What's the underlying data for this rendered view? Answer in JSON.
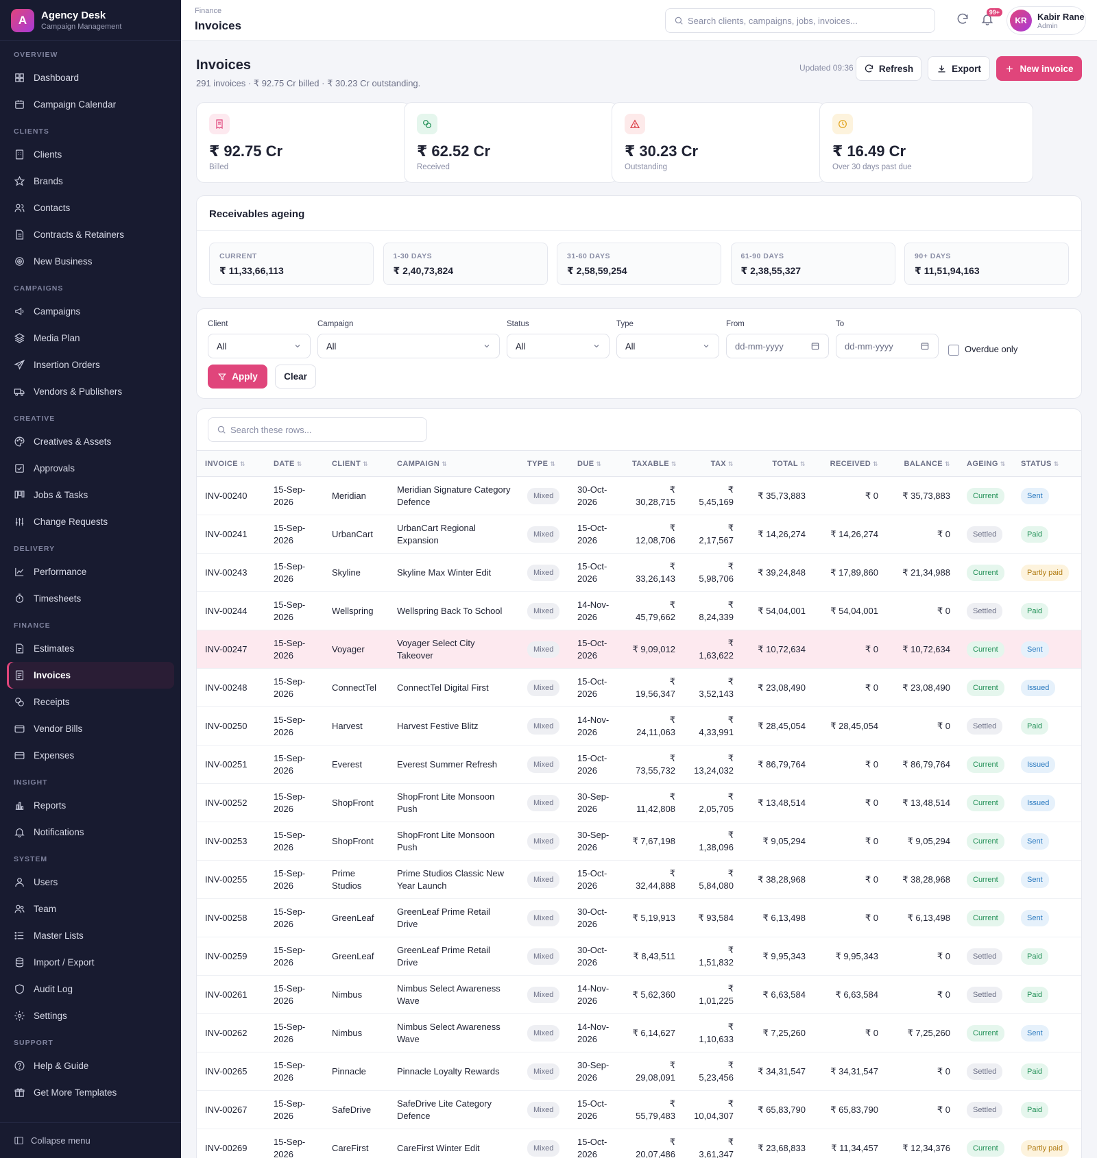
{
  "brand": {
    "name": "Agency Desk",
    "sub": "Campaign Management",
    "logo_letter": "A"
  },
  "sidebar": {
    "sections": [
      {
        "title": "OVERVIEW",
        "items": [
          {
            "label": "Dashboard",
            "icon": "dashboard-icon"
          },
          {
            "label": "Campaign Calendar",
            "icon": "calendar-icon"
          }
        ]
      },
      {
        "title": "CLIENTS",
        "items": [
          {
            "label": "Clients",
            "icon": "building-icon"
          },
          {
            "label": "Brands",
            "icon": "star-icon"
          },
          {
            "label": "Contacts",
            "icon": "contacts-icon"
          },
          {
            "label": "Contracts & Retainers",
            "icon": "contract-icon"
          },
          {
            "label": "New Business",
            "icon": "target-icon"
          }
        ]
      },
      {
        "title": "CAMPAIGNS",
        "items": [
          {
            "label": "Campaigns",
            "icon": "megaphone-icon"
          },
          {
            "label": "Media Plan",
            "icon": "layers-icon"
          },
          {
            "label": "Insertion Orders",
            "icon": "send-icon"
          },
          {
            "label": "Vendors & Publishers",
            "icon": "truck-icon"
          }
        ]
      },
      {
        "title": "CREATIVE",
        "items": [
          {
            "label": "Creatives & Assets",
            "icon": "palette-icon"
          },
          {
            "label": "Approvals",
            "icon": "check-square-icon"
          },
          {
            "label": "Jobs & Tasks",
            "icon": "kanban-icon"
          },
          {
            "label": "Change Requests",
            "icon": "sliders-icon"
          }
        ]
      },
      {
        "title": "DELIVERY",
        "items": [
          {
            "label": "Performance",
            "icon": "chart-line-icon"
          },
          {
            "label": "Timesheets",
            "icon": "stopwatch-icon"
          }
        ]
      },
      {
        "title": "FINANCE",
        "items": [
          {
            "label": "Estimates",
            "icon": "estimate-icon"
          },
          {
            "label": "Invoices",
            "icon": "invoice-icon",
            "active": true
          },
          {
            "label": "Receipts",
            "icon": "coins-icon"
          },
          {
            "label": "Vendor Bills",
            "icon": "wallet-icon"
          },
          {
            "label": "Expenses",
            "icon": "card-icon"
          }
        ]
      },
      {
        "title": "INSIGHT",
        "items": [
          {
            "label": "Reports",
            "icon": "bar-chart-icon"
          },
          {
            "label": "Notifications",
            "icon": "bell-icon"
          }
        ]
      },
      {
        "title": "SYSTEM",
        "items": [
          {
            "label": "Users",
            "icon": "user-icon"
          },
          {
            "label": "Team",
            "icon": "team-icon"
          },
          {
            "label": "Master Lists",
            "icon": "list-icon"
          },
          {
            "label": "Import / Export",
            "icon": "database-icon"
          },
          {
            "label": "Audit Log",
            "icon": "shield-icon"
          },
          {
            "label": "Settings",
            "icon": "gear-icon"
          }
        ]
      },
      {
        "title": "SUPPORT",
        "items": [
          {
            "label": "Help & Guide",
            "icon": "help-icon"
          },
          {
            "label": "Get More Templates",
            "icon": "gift-icon"
          }
        ]
      }
    ],
    "collapse_label": "Collapse menu"
  },
  "topbar": {
    "crumb": "Finance",
    "title": "Invoices",
    "search_placeholder": "Search clients, campaigns, jobs, invoices...",
    "notif_count": "99+",
    "user_initials": "KR",
    "user_name": "Kabir Rane",
    "user_role": "Admin"
  },
  "header": {
    "title": "Invoices",
    "subtitle": "291 invoices · ₹ 92.75 Cr billed · ₹ 30.23 Cr outstanding.",
    "updated": "Updated 09:36",
    "refresh_label": "Refresh",
    "export_label": "Export",
    "new_label": "New invoice"
  },
  "kpis": [
    {
      "value": "₹ 92.75 Cr",
      "label": "Billed",
      "icon": "receipt-icon",
      "color": "#e0457b",
      "bg": "#fde9ef"
    },
    {
      "value": "₹ 62.52 Cr",
      "label": "Received",
      "icon": "coins-icon",
      "color": "#1f8f55",
      "bg": "#e5f6ed"
    },
    {
      "value": "₹ 30.23 Cr",
      "label": "Outstanding",
      "icon": "warning-icon",
      "color": "#d9363e",
      "bg": "#fdeaea"
    },
    {
      "value": "₹ 16.49 Cr",
      "label": "Over 30 days past due",
      "icon": "clock-icon",
      "color": "#e0a21b",
      "bg": "#fdf3dd"
    }
  ],
  "ageing": {
    "title": "Receivables ageing",
    "buckets": [
      {
        "label": "CURRENT",
        "value": "₹ 11,33,66,113"
      },
      {
        "label": "1-30 DAYS",
        "value": "₹ 2,40,73,824"
      },
      {
        "label": "31-60 DAYS",
        "value": "₹ 2,58,59,254"
      },
      {
        "label": "61-90 DAYS",
        "value": "₹ 2,38,55,327"
      },
      {
        "label": "90+ DAYS",
        "value": "₹ 11,51,94,163"
      }
    ]
  },
  "filters": {
    "client_label": "Client",
    "client_value": "All",
    "campaign_label": "Campaign",
    "campaign_value": "All",
    "status_label": "Status",
    "status_value": "All",
    "type_label": "Type",
    "type_value": "All",
    "from_label": "From",
    "from_placeholder": "dd-mm-yyyy",
    "to_label": "To",
    "to_placeholder": "dd-mm-yyyy",
    "overdue_label": "Overdue only",
    "apply_label": "Apply",
    "clear_label": "Clear"
  },
  "table": {
    "search_placeholder": "Search these rows...",
    "columns": [
      "INVOICE",
      "DATE",
      "CLIENT",
      "CAMPAIGN",
      "TYPE",
      "DUE",
      "TAXABLE",
      "TAX",
      "TOTAL",
      "RECEIVED",
      "BALANCE",
      "AGEING",
      "STATUS"
    ],
    "rows": [
      {
        "invoice": "INV-00240",
        "date": "15-Sep-2026",
        "client": "Meridian",
        "campaign": "Meridian Signature Category Defence",
        "type": "Mixed",
        "due": "30-Oct-2026",
        "taxable": "₹ 30,28,715",
        "tax": "₹ 5,45,169",
        "total": "₹ 35,73,883",
        "received": "₹ 0",
        "balance": "₹ 35,73,883",
        "ageing": "Current",
        "status": "Sent"
      },
      {
        "invoice": "INV-00241",
        "date": "15-Sep-2026",
        "client": "UrbanCart",
        "campaign": "UrbanCart Regional Expansion",
        "type": "Mixed",
        "due": "15-Oct-2026",
        "taxable": "₹ 12,08,706",
        "tax": "₹ 2,17,567",
        "total": "₹ 14,26,274",
        "received": "₹ 14,26,274",
        "balance": "₹ 0",
        "ageing": "Settled",
        "status": "Paid"
      },
      {
        "invoice": "INV-00243",
        "date": "15-Sep-2026",
        "client": "Skyline",
        "campaign": "Skyline Max Winter Edit",
        "type": "Mixed",
        "due": "15-Oct-2026",
        "taxable": "₹ 33,26,143",
        "tax": "₹ 5,98,706",
        "total": "₹ 39,24,848",
        "received": "₹ 17,89,860",
        "balance": "₹ 21,34,988",
        "ageing": "Current",
        "status": "Partly paid"
      },
      {
        "invoice": "INV-00244",
        "date": "15-Sep-2026",
        "client": "Wellspring",
        "campaign": "Wellspring Back To School",
        "type": "Mixed",
        "due": "14-Nov-2026",
        "taxable": "₹ 45,79,662",
        "tax": "₹ 8,24,339",
        "total": "₹ 54,04,001",
        "received": "₹ 54,04,001",
        "balance": "₹ 0",
        "ageing": "Settled",
        "status": "Paid"
      },
      {
        "invoice": "INV-00247",
        "date": "15-Sep-2026",
        "client": "Voyager",
        "campaign": "Voyager Select City Takeover",
        "type": "Mixed",
        "due": "15-Oct-2026",
        "taxable": "₹ 9,09,012",
        "tax": "₹ 1,63,622",
        "total": "₹ 10,72,634",
        "received": "₹ 0",
        "balance": "₹ 10,72,634",
        "ageing": "Current",
        "status": "Sent",
        "highlight": true
      },
      {
        "invoice": "INV-00248",
        "date": "15-Sep-2026",
        "client": "ConnectTel",
        "campaign": "ConnectTel Digital First",
        "type": "Mixed",
        "due": "15-Oct-2026",
        "taxable": "₹ 19,56,347",
        "tax": "₹ 3,52,143",
        "total": "₹ 23,08,490",
        "received": "₹ 0",
        "balance": "₹ 23,08,490",
        "ageing": "Current",
        "status": "Issued"
      },
      {
        "invoice": "INV-00250",
        "date": "15-Sep-2026",
        "client": "Harvest",
        "campaign": "Harvest Festive Blitz",
        "type": "Mixed",
        "due": "14-Nov-2026",
        "taxable": "₹ 24,11,063",
        "tax": "₹ 4,33,991",
        "total": "₹ 28,45,054",
        "received": "₹ 28,45,054",
        "balance": "₹ 0",
        "ageing": "Settled",
        "status": "Paid"
      },
      {
        "invoice": "INV-00251",
        "date": "15-Sep-2026",
        "client": "Everest",
        "campaign": "Everest Summer Refresh",
        "type": "Mixed",
        "due": "15-Oct-2026",
        "taxable": "₹ 73,55,732",
        "tax": "₹ 13,24,032",
        "total": "₹ 86,79,764",
        "received": "₹ 0",
        "balance": "₹ 86,79,764",
        "ageing": "Current",
        "status": "Issued"
      },
      {
        "invoice": "INV-00252",
        "date": "15-Sep-2026",
        "client": "ShopFront",
        "campaign": "ShopFront Lite Monsoon Push",
        "type": "Mixed",
        "due": "30-Sep-2026",
        "taxable": "₹ 11,42,808",
        "tax": "₹ 2,05,705",
        "total": "₹ 13,48,514",
        "received": "₹ 0",
        "balance": "₹ 13,48,514",
        "ageing": "Current",
        "status": "Issued"
      },
      {
        "invoice": "INV-00253",
        "date": "15-Sep-2026",
        "client": "ShopFront",
        "campaign": "ShopFront Lite Monsoon Push",
        "type": "Mixed",
        "due": "30-Sep-2026",
        "taxable": "₹ 7,67,198",
        "tax": "₹ 1,38,096",
        "total": "₹ 9,05,294",
        "received": "₹ 0",
        "balance": "₹ 9,05,294",
        "ageing": "Current",
        "status": "Sent"
      },
      {
        "invoice": "INV-00255",
        "date": "15-Sep-2026",
        "client": "Prime Studios",
        "campaign": "Prime Studios Classic New Year Launch",
        "type": "Mixed",
        "due": "15-Oct-2026",
        "taxable": "₹ 32,44,888",
        "tax": "₹ 5,84,080",
        "total": "₹ 38,28,968",
        "received": "₹ 0",
        "balance": "₹ 38,28,968",
        "ageing": "Current",
        "status": "Sent"
      },
      {
        "invoice": "INV-00258",
        "date": "15-Sep-2026",
        "client": "GreenLeaf",
        "campaign": "GreenLeaf Prime Retail Drive",
        "type": "Mixed",
        "due": "30-Oct-2026",
        "taxable": "₹ 5,19,913",
        "tax": "₹ 93,584",
        "total": "₹ 6,13,498",
        "received": "₹ 0",
        "balance": "₹ 6,13,498",
        "ageing": "Current",
        "status": "Sent"
      },
      {
        "invoice": "INV-00259",
        "date": "15-Sep-2026",
        "client": "GreenLeaf",
        "campaign": "GreenLeaf Prime Retail Drive",
        "type": "Mixed",
        "due": "30-Oct-2026",
        "taxable": "₹ 8,43,511",
        "tax": "₹ 1,51,832",
        "total": "₹ 9,95,343",
        "received": "₹ 9,95,343",
        "balance": "₹ 0",
        "ageing": "Settled",
        "status": "Paid"
      },
      {
        "invoice": "INV-00261",
        "date": "15-Sep-2026",
        "client": "Nimbus",
        "campaign": "Nimbus Select Awareness Wave",
        "type": "Mixed",
        "due": "14-Nov-2026",
        "taxable": "₹ 5,62,360",
        "tax": "₹ 1,01,225",
        "total": "₹ 6,63,584",
        "received": "₹ 6,63,584",
        "balance": "₹ 0",
        "ageing": "Settled",
        "status": "Paid"
      },
      {
        "invoice": "INV-00262",
        "date": "15-Sep-2026",
        "client": "Nimbus",
        "campaign": "Nimbus Select Awareness Wave",
        "type": "Mixed",
        "due": "14-Nov-2026",
        "taxable": "₹ 6,14,627",
        "tax": "₹ 1,10,633",
        "total": "₹ 7,25,260",
        "received": "₹ 0",
        "balance": "₹ 7,25,260",
        "ageing": "Current",
        "status": "Sent"
      },
      {
        "invoice": "INV-00265",
        "date": "15-Sep-2026",
        "client": "Pinnacle",
        "campaign": "Pinnacle Loyalty Rewards",
        "type": "Mixed",
        "due": "30-Sep-2026",
        "taxable": "₹ 29,08,091",
        "tax": "₹ 5,23,456",
        "total": "₹ 34,31,547",
        "received": "₹ 34,31,547",
        "balance": "₹ 0",
        "ageing": "Settled",
        "status": "Paid"
      },
      {
        "invoice": "INV-00267",
        "date": "15-Sep-2026",
        "client": "SafeDrive",
        "campaign": "SafeDrive Lite Category Defence",
        "type": "Mixed",
        "due": "15-Oct-2026",
        "taxable": "₹ 55,79,483",
        "tax": "₹ 10,04,307",
        "total": "₹ 65,83,790",
        "received": "₹ 65,83,790",
        "balance": "₹ 0",
        "ageing": "Settled",
        "status": "Paid"
      },
      {
        "invoice": "INV-00269",
        "date": "15-Sep-2026",
        "client": "CareFirst",
        "campaign": "CareFirst Winter Edit",
        "type": "Mixed",
        "due": "15-Oct-2026",
        "taxable": "₹ 20,07,486",
        "tax": "₹ 3,61,347",
        "total": "₹ 23,68,833",
        "received": "₹ 11,34,457",
        "balance": "₹ 12,34,376",
        "ageing": "Current",
        "status": "Partly paid"
      }
    ]
  }
}
